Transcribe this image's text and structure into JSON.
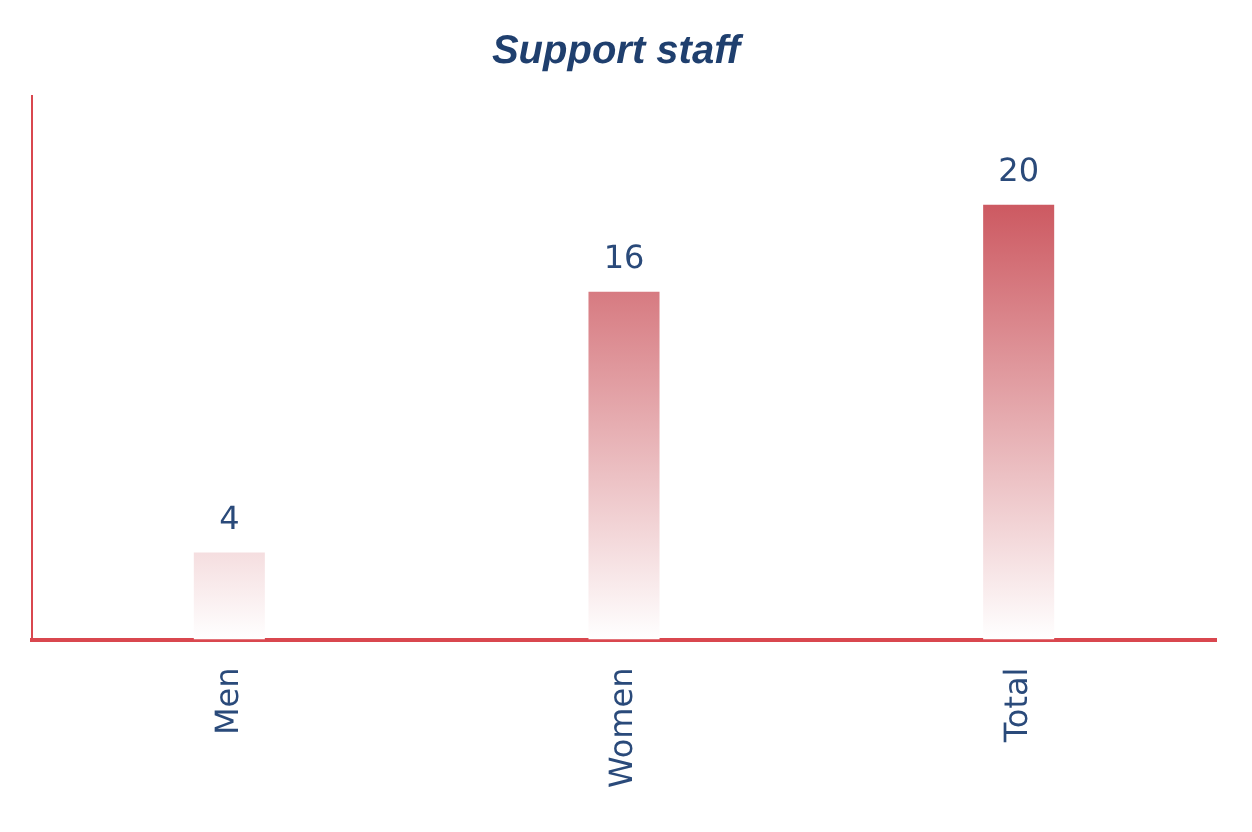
{
  "chart_data": {
    "type": "bar",
    "title": "Support staff",
    "categories": [
      "Men",
      "Women",
      "Total"
    ],
    "values": [
      4,
      16,
      20
    ],
    "color": "#c0303a",
    "data_labels": true,
    "grid": false,
    "legend": false
  }
}
